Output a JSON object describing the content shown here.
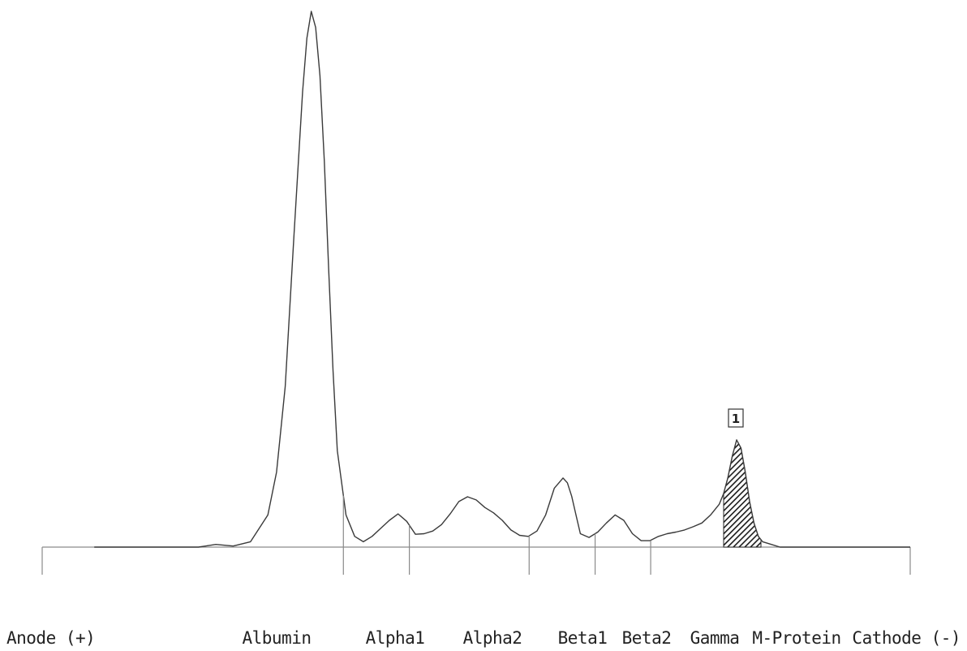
{
  "chart_data": {
    "type": "line",
    "title": "",
    "xlabel": "",
    "ylabel": "",
    "grid": false,
    "legend": "none",
    "labels": {
      "anode": "Anode (+)",
      "cathode": "Cathode (-)",
      "fractions": [
        "Albumin",
        "Alpha1",
        "Alpha2",
        "Beta1",
        "Beta2",
        "Gamma",
        "M-Protein"
      ]
    },
    "fraction_boundaries": [
      0.347,
      0.423,
      0.561,
      0.637,
      0.701
    ],
    "m_protein_marker": "1",
    "m_protein_range": [
      0.785,
      0.828
    ],
    "xlim": [
      0,
      1
    ],
    "ylim": [
      0,
      1
    ],
    "trace_x": [
      0.06,
      0.18,
      0.2,
      0.22,
      0.24,
      0.26,
      0.27,
      0.28,
      0.29,
      0.3,
      0.305,
      0.31,
      0.315,
      0.32,
      0.325,
      0.33,
      0.335,
      0.34,
      0.35,
      0.36,
      0.37,
      0.38,
      0.39,
      0.4,
      0.41,
      0.42,
      0.43,
      0.44,
      0.45,
      0.46,
      0.47,
      0.48,
      0.49,
      0.5,
      0.51,
      0.52,
      0.53,
      0.54,
      0.55,
      0.56,
      0.57,
      0.58,
      0.59,
      0.6,
      0.605,
      0.61,
      0.615,
      0.62,
      0.63,
      0.64,
      0.65,
      0.66,
      0.67,
      0.68,
      0.69,
      0.7,
      0.71,
      0.72,
      0.73,
      0.74,
      0.75,
      0.76,
      0.77,
      0.78,
      0.785,
      0.79,
      0.795,
      0.8,
      0.805,
      0.81,
      0.815,
      0.82,
      0.825,
      0.83,
      0.84,
      0.85,
      0.86,
      0.87,
      0.88,
      0.9,
      1.0
    ],
    "trace_y": [
      0.0,
      0.0,
      0.005,
      0.002,
      0.01,
      0.06,
      0.14,
      0.3,
      0.58,
      0.85,
      0.95,
      1.0,
      0.97,
      0.88,
      0.72,
      0.52,
      0.33,
      0.18,
      0.06,
      0.02,
      0.01,
      0.02,
      0.035,
      0.05,
      0.062,
      0.048,
      0.024,
      0.025,
      0.03,
      0.042,
      0.062,
      0.085,
      0.094,
      0.088,
      0.074,
      0.064,
      0.05,
      0.032,
      0.022,
      0.02,
      0.03,
      0.06,
      0.11,
      0.129,
      0.12,
      0.095,
      0.06,
      0.025,
      0.018,
      0.028,
      0.045,
      0.06,
      0.05,
      0.025,
      0.012,
      0.012,
      0.02,
      0.025,
      0.028,
      0.032,
      0.038,
      0.045,
      0.06,
      0.08,
      0.1,
      0.13,
      0.17,
      0.2,
      0.185,
      0.14,
      0.085,
      0.045,
      0.02,
      0.01,
      0.005,
      0.0,
      0.0,
      0.0,
      0.0,
      0.0,
      0.0
    ]
  }
}
